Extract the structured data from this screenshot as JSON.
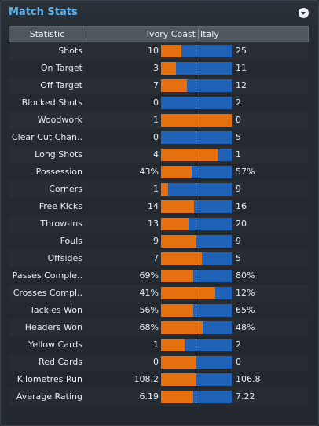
{
  "panel": {
    "title": "Match Stats",
    "menu_icon": "chevron-down-icon"
  },
  "header": {
    "statistic": "Statistic",
    "home_team": "Ivory Coast",
    "away_team": "Italy"
  },
  "colors": {
    "home": "#e4700f",
    "away": "#1f62b8",
    "title": "#5fb2ea"
  },
  "rows": [
    {
      "label": "Shots",
      "home": "10",
      "away": "25",
      "home_share": 0.29
    },
    {
      "label": "On Target",
      "home": "3",
      "away": "11",
      "home_share": 0.21
    },
    {
      "label": "Off Target",
      "home": "7",
      "away": "12",
      "home_share": 0.37
    },
    {
      "label": "Blocked Shots",
      "home": "0",
      "away": "2",
      "home_share": 0.0
    },
    {
      "label": "Woodwork",
      "home": "1",
      "away": "0",
      "home_share": 1.0
    },
    {
      "label": "Clear Cut Chan..",
      "home": "0",
      "away": "5",
      "home_share": 0.0
    },
    {
      "label": "Long Shots",
      "home": "4",
      "away": "1",
      "home_share": 0.8
    },
    {
      "label": "Possession",
      "home": "43%",
      "away": "57%",
      "home_share": 0.43
    },
    {
      "label": "Corners",
      "home": "1",
      "away": "9",
      "home_share": 0.1
    },
    {
      "label": "Free Kicks",
      "home": "14",
      "away": "16",
      "home_share": 0.47
    },
    {
      "label": "Throw-Ins",
      "home": "13",
      "away": "20",
      "home_share": 0.39
    },
    {
      "label": "Fouls",
      "home": "9",
      "away": "9",
      "home_share": 0.5
    },
    {
      "label": "Offsides",
      "home": "7",
      "away": "5",
      "home_share": 0.58
    },
    {
      "label": "Passes Comple..",
      "home": "69%",
      "away": "80%",
      "home_share": 0.46
    },
    {
      "label": "Crosses Compl..",
      "home": "41%",
      "away": "12%",
      "home_share": 0.77
    },
    {
      "label": "Tackles Won",
      "home": "56%",
      "away": "65%",
      "home_share": 0.46
    },
    {
      "label": "Headers Won",
      "home": "68%",
      "away": "48%",
      "home_share": 0.59
    },
    {
      "label": "Yellow Cards",
      "home": "1",
      "away": "2",
      "home_share": 0.33
    },
    {
      "label": "Red Cards",
      "home": "0",
      "away": "0",
      "home_share": 0.5
    },
    {
      "label": "Kilometres Run",
      "home": "108.2",
      "away": "106.8",
      "home_share": 0.5
    },
    {
      "label": "Average Rating",
      "home": "6.19",
      "away": "7.22",
      "home_share": 0.46
    }
  ]
}
